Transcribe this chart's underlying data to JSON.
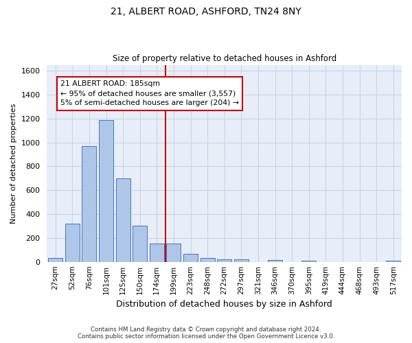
{
  "title_line1": "21, ALBERT ROAD, ASHFORD, TN24 8NY",
  "title_line2": "Size of property relative to detached houses in Ashford",
  "xlabel": "Distribution of detached houses by size in Ashford",
  "ylabel": "Number of detached properties",
  "bar_labels": [
    "27sqm",
    "52sqm",
    "76sqm",
    "101sqm",
    "125sqm",
    "150sqm",
    "174sqm",
    "199sqm",
    "223sqm",
    "248sqm",
    "272sqm",
    "297sqm",
    "321sqm",
    "346sqm",
    "370sqm",
    "395sqm",
    "419sqm",
    "444sqm",
    "468sqm",
    "493sqm",
    "517sqm"
  ],
  "bar_values": [
    30,
    320,
    970,
    1190,
    700,
    300,
    155,
    155,
    65,
    30,
    20,
    20,
    0,
    15,
    0,
    10,
    0,
    0,
    0,
    0,
    10
  ],
  "bar_color": "#aec6e8",
  "bar_edge_color": "#4472c4",
  "grid_color": "#c8d4e8",
  "background_color": "#e8eef8",
  "vline_x_index": 6.5,
  "vline_color": "#cc0000",
  "annotation_line1": "21 ALBERT ROAD: 185sqm",
  "annotation_line2": "← 95% of detached houses are smaller (3,557)",
  "annotation_line3": "5% of semi-detached houses are larger (204) →",
  "annotation_box_color": "#cc0000",
  "ylim": [
    0,
    1650
  ],
  "yticks": [
    0,
    200,
    400,
    600,
    800,
    1000,
    1200,
    1400,
    1600
  ],
  "footer_line1": "Contains HM Land Registry data © Crown copyright and database right 2024.",
  "footer_line2": "Contains public sector information licensed under the Open Government Licence v3.0."
}
